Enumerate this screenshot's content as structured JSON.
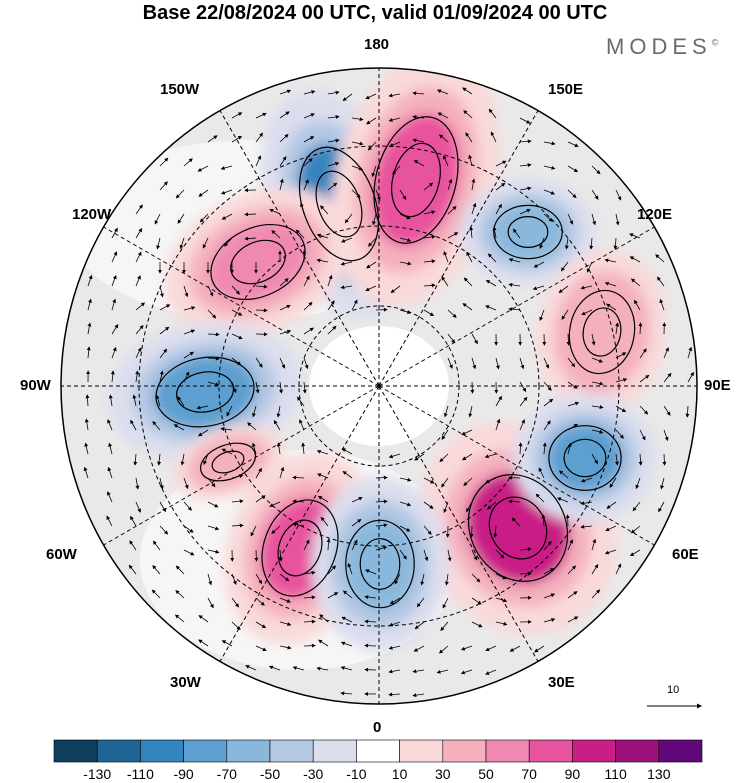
{
  "title": "Base 22/08/2024 00 UTC, valid 01/09/2024 00 UTC",
  "brand": "MODES",
  "brand_mark": "©",
  "longitude_labels": {
    "l180": "180",
    "l150w": "150W",
    "l150e": "150E",
    "l120w": "120W",
    "l120e": "120E",
    "l90w": "90W",
    "l90e": "90E",
    "l60w": "60W",
    "l60e": "60E",
    "l30w": "30W",
    "l30e": "30E",
    "l0": "0"
  },
  "reference_vector_label": "10",
  "colorbar": {
    "labels": [
      "-130",
      "-110",
      "-90",
      "-70",
      "-50",
      "-30",
      "-10",
      "10",
      "30",
      "50",
      "70",
      "90",
      "110",
      "130"
    ],
    "colors": [
      "#0f3d5e",
      "#1f6696",
      "#3484bf",
      "#5c9fd0",
      "#89b8dc",
      "#b3c8e3",
      "#dcdeee",
      "#ffffff",
      "#f9d9da",
      "#f4b0bd",
      "#f089b1",
      "#e8539e",
      "#c91e86",
      "#9c107b",
      "#62087a"
    ]
  },
  "anomaly_centers": [
    {
      "kind": "negative",
      "color": "#3484bf"
    },
    {
      "kind": "positive",
      "color": "#e8539e"
    },
    {
      "kind": "positive",
      "color": "#f089b1"
    },
    {
      "kind": "negative",
      "color": "#89b8dc"
    },
    {
      "kind": "positive",
      "color": "#f4b0bd"
    },
    {
      "kind": "negative",
      "color": "#5c9fd0"
    },
    {
      "kind": "positive",
      "color": "#c91e86"
    },
    {
      "kind": "negative",
      "color": "#5c9fd0"
    },
    {
      "kind": "positive",
      "color": "#e8539e"
    },
    {
      "kind": "negative",
      "color": "#89b8dc"
    },
    {
      "kind": "positive",
      "color": "#f4b0bd"
    }
  ]
}
